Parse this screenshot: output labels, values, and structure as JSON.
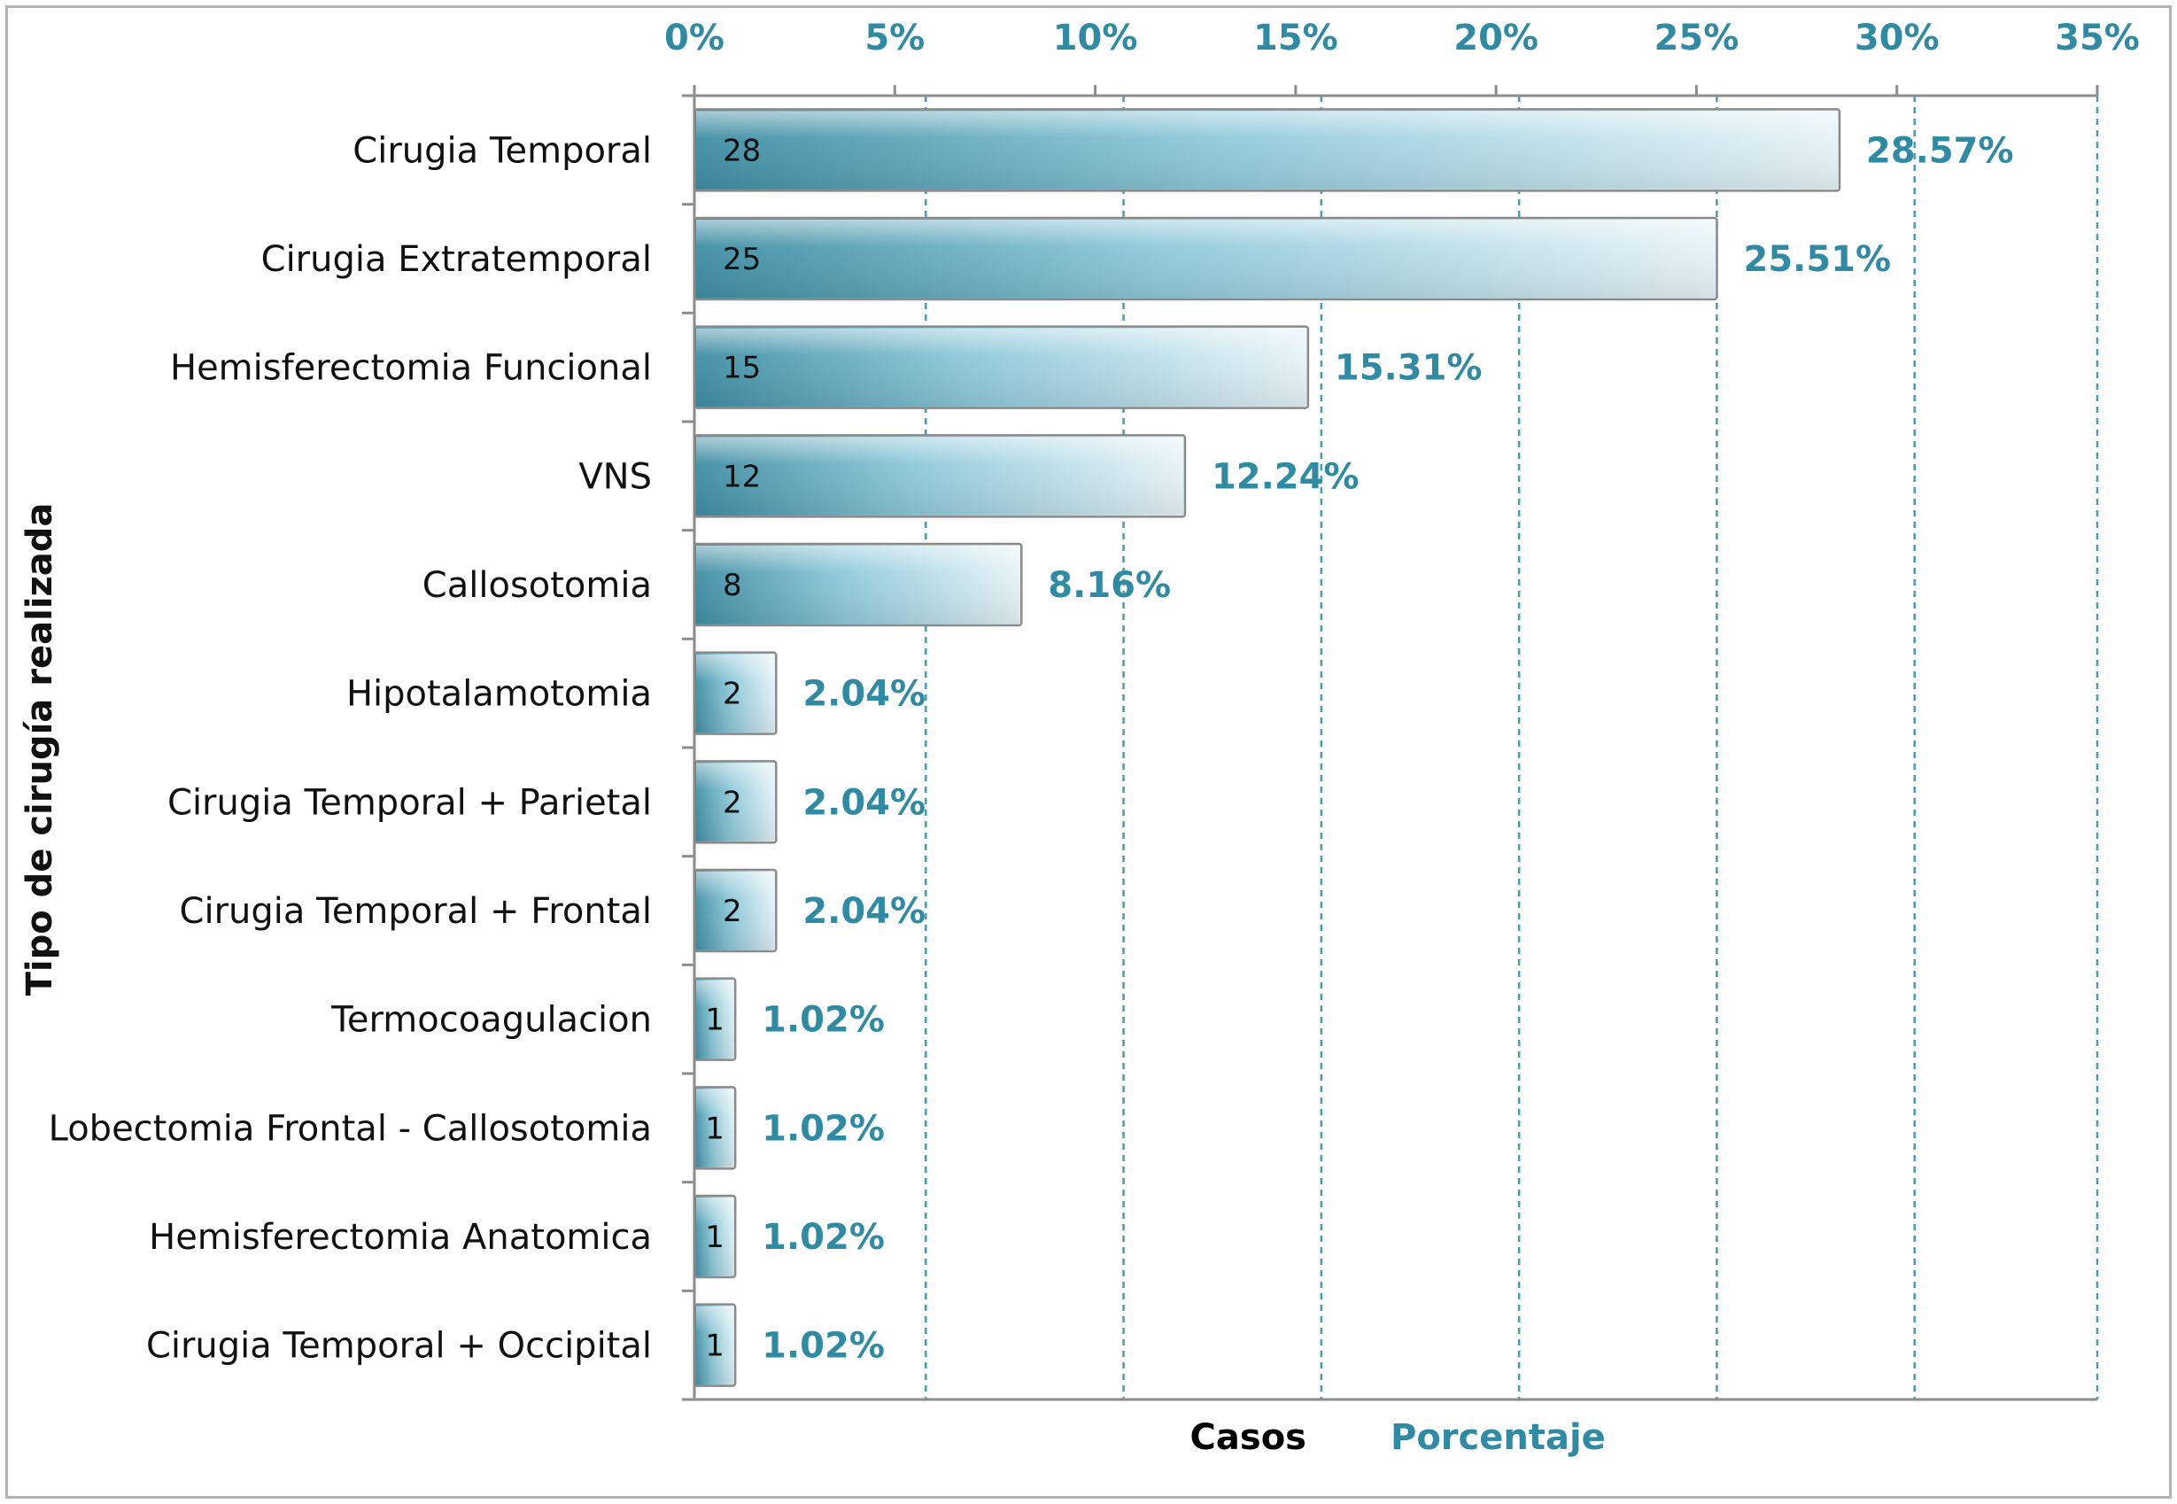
{
  "chart_data": {
    "type": "bar",
    "orientation": "horizontal",
    "categories": [
      "Cirugia Temporal",
      "Cirugia Extratemporal",
      "Hemisferectomia Funcional",
      "VNS",
      "Callosotomia",
      "Hipotalamotomia",
      "Cirugia Temporal + Parietal",
      "Cirugia Temporal + Frontal",
      "Termocoagulacion",
      "Lobectomia Frontal - Callosotomia",
      "Hemisferectomia Anatomica",
      "Cirugia Temporal + Occipital"
    ],
    "series": [
      {
        "name": "Casos",
        "values": [
          28,
          25,
          15,
          12,
          8,
          2,
          2,
          2,
          1,
          1,
          1,
          1
        ],
        "labels": [
          "28",
          "25",
          "15",
          "12",
          "8",
          "2",
          "2",
          "2",
          "1",
          "1",
          "1",
          "1"
        ]
      },
      {
        "name": "Porcentaje",
        "values": [
          28.57,
          25.51,
          15.31,
          12.24,
          8.16,
          2.04,
          2.04,
          2.04,
          1.02,
          1.02,
          1.02,
          1.02
        ],
        "labels": [
          "28.57%",
          "25.51%",
          "15.31%",
          "12.24%",
          "8.16%",
          "2.04%",
          "2.04%",
          "2.04%",
          "1.02%",
          "1.02%",
          "1.02%",
          "1.02%"
        ]
      }
    ],
    "x_axis": {
      "position": "top",
      "ticks": [
        "0%",
        "5%",
        "10%",
        "15%",
        "20%",
        "25%",
        "30%",
        "35%"
      ],
      "range": [
        0,
        35
      ],
      "unit": "%"
    },
    "ylabel": "Tipo de cirugía realizada",
    "legend": {
      "placement": "bottom",
      "entries": [
        "Casos",
        "Porcentaje"
      ]
    },
    "grid": "vertical dashed",
    "colors": {
      "bar_dark": "#3f8ea3",
      "bar_light": "#e6f3f7",
      "accent_text": "#2e8ba3",
      "gridline": "#4a9ab0",
      "axis": "#8c8c8c"
    }
  }
}
